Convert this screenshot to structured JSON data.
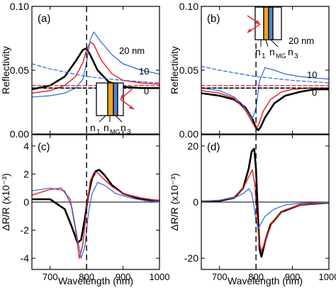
{
  "colors": {
    "black": "#000000",
    "red": "#e8262a",
    "blue": "#2e66d6",
    "orange": "#f3a21d",
    "blue_layer": "#4a87d6",
    "arrow": "#e8262a"
  },
  "chart_data": [
    {
      "panel": "(a)",
      "type": "line",
      "ylabel": "Reflectivity",
      "xlim": [
        650,
        1000
      ],
      "ylim": [
        0.0,
        0.1
      ],
      "yticks": [
        "0.00",
        "0.05",
        "0.10"
      ],
      "xticks": [],
      "vline_x": 800,
      "series_labels": [
        "20 nm",
        "10",
        "0"
      ],
      "inset_labels": [
        "n",
        "1",
        "n",
        "MG",
        "n",
        "3"
      ],
      "series": [
        {
          "color": "black",
          "dash": false,
          "width": 2.6,
          "x": [
            650,
            700,
            740,
            770,
            790,
            800,
            810,
            830,
            860,
            900,
            950,
            1000
          ],
          "y": [
            0.035,
            0.038,
            0.045,
            0.057,
            0.066,
            0.067,
            0.062,
            0.05,
            0.041,
            0.037,
            0.036,
            0.036
          ]
        },
        {
          "color": "red",
          "dash": false,
          "width": 1.5,
          "x": [
            650,
            700,
            740,
            770,
            790,
            800,
            810,
            820,
            840,
            870,
            900,
            950,
            1000
          ],
          "y": [
            0.032,
            0.034,
            0.038,
            0.045,
            0.056,
            0.066,
            0.072,
            0.07,
            0.058,
            0.047,
            0.042,
            0.04,
            0.039
          ]
        },
        {
          "color": "blue",
          "dash": false,
          "width": 1.2,
          "x": [
            650,
            700,
            740,
            770,
            790,
            800,
            810,
            820,
            840,
            870,
            900,
            950,
            1000
          ],
          "y": [
            0.029,
            0.03,
            0.032,
            0.036,
            0.043,
            0.056,
            0.074,
            0.08,
            0.072,
            0.062,
            0.055,
            0.05,
            0.047
          ]
        },
        {
          "color": "blue",
          "dash": true,
          "width": 1.2,
          "x": [
            650,
            700,
            800,
            900,
            1000
          ],
          "y": [
            0.055,
            0.051,
            0.045,
            0.042,
            0.04
          ]
        },
        {
          "color": "red",
          "dash": true,
          "width": 1.3,
          "x": [
            650,
            800,
            1000
          ],
          "y": [
            0.038,
            0.038,
            0.038
          ]
        },
        {
          "color": "black",
          "dash": true,
          "width": 1.6,
          "x": [
            650,
            800,
            1000
          ],
          "y": [
            0.036,
            0.036,
            0.036
          ]
        }
      ]
    },
    {
      "panel": "(b)",
      "type": "line",
      "ylabel": "Reflectivity",
      "xlim": [
        650,
        1000
      ],
      "ylim": [
        0.0,
        0.1
      ],
      "yticks": [
        "0.00",
        "0.05",
        "0.10"
      ],
      "xticks": [],
      "vline_x": 800,
      "series_labels": [
        "20 nm",
        "10",
        "0"
      ],
      "inset_labels": [
        "n",
        "1",
        "n",
        "MG",
        "n",
        "3"
      ],
      "series": [
        {
          "color": "black",
          "dash": false,
          "width": 2.6,
          "x": [
            650,
            700,
            740,
            770,
            790,
            800,
            806,
            812,
            825,
            850,
            880,
            920,
            960,
            1000
          ],
          "y": [
            0.032,
            0.03,
            0.027,
            0.021,
            0.012,
            0.005,
            0.003,
            0.005,
            0.013,
            0.024,
            0.03,
            0.033,
            0.035,
            0.035
          ]
        },
        {
          "color": "red",
          "dash": false,
          "width": 1.5,
          "x": [
            650,
            700,
            740,
            770,
            790,
            800,
            808,
            820,
            840,
            870,
            900,
            950,
            1000
          ],
          "y": [
            0.034,
            0.032,
            0.028,
            0.019,
            0.009,
            0.004,
            0.008,
            0.018,
            0.027,
            0.033,
            0.035,
            0.036,
            0.036
          ]
        },
        {
          "color": "blue",
          "dash": false,
          "width": 1.2,
          "x": [
            650,
            700,
            740,
            760,
            780,
            790,
            800,
            810,
            825,
            850,
            880,
            920,
            960,
            1000
          ],
          "y": [
            0.036,
            0.034,
            0.029,
            0.024,
            0.016,
            0.012,
            0.02,
            0.042,
            0.052,
            0.05,
            0.047,
            0.045,
            0.044,
            0.043
          ]
        },
        {
          "color": "blue",
          "dash": true,
          "width": 1.2,
          "x": [
            650,
            700,
            800,
            900,
            1000
          ],
          "y": [
            0.053,
            0.05,
            0.045,
            0.042,
            0.04
          ]
        },
        {
          "color": "red",
          "dash": true,
          "width": 1.3,
          "x": [
            650,
            800,
            1000
          ],
          "y": [
            0.038,
            0.038,
            0.038
          ]
        },
        {
          "color": "black",
          "dash": true,
          "width": 1.6,
          "x": [
            650,
            800,
            1000
          ],
          "y": [
            0.036,
            0.036,
            0.036
          ]
        }
      ]
    },
    {
      "panel": "(c)",
      "type": "line",
      "ylabel": "ΔR/R (x10⁻³)",
      "xlabel": "Wavelength (nm)",
      "xlim": [
        650,
        1000
      ],
      "ylim": [
        -4.8,
        4.8
      ],
      "yticks": [
        "-4",
        "-2",
        "0",
        "2",
        "4"
      ],
      "ytick_values": [
        -4,
        -2,
        0,
        2,
        4
      ],
      "xticks": [
        "700",
        "800",
        "900",
        "1000"
      ],
      "xtick_values": [
        700,
        800,
        900,
        1000
      ],
      "vline_x": 800,
      "zero_line": true,
      "series": [
        {
          "color": "black",
          "dash": false,
          "width": 2.6,
          "x": [
            650,
            700,
            740,
            760,
            775,
            785,
            795,
            805,
            815,
            825,
            835,
            850,
            870,
            900,
            950,
            1000
          ],
          "y": [
            0.2,
            0.2,
            -0.5,
            -1.8,
            -2.9,
            -2.7,
            -1.2,
            0.5,
            1.7,
            2.2,
            2.3,
            1.9,
            1.2,
            0.6,
            0.2,
            0.1
          ]
        },
        {
          "color": "red",
          "dash": false,
          "width": 1.5,
          "x": [
            650,
            700,
            730,
            755,
            770,
            780,
            790,
            800,
            810,
            820,
            830,
            845,
            870,
            900,
            950,
            1000
          ],
          "y": [
            0.5,
            0.9,
            1.0,
            0.2,
            -2.0,
            -4.0,
            -3.0,
            -0.5,
            1.5,
            2.1,
            2.1,
            1.7,
            1.1,
            0.6,
            0.3,
            0.1
          ]
        },
        {
          "color": "blue",
          "dash": false,
          "width": 1.2,
          "x": [
            650,
            700,
            740,
            760,
            775,
            785,
            795,
            805,
            815,
            830,
            850,
            880,
            920,
            960,
            1000
          ],
          "y": [
            0.8,
            1.0,
            0.8,
            -0.4,
            -2.6,
            -4.0,
            -3.2,
            -0.8,
            0.6,
            1.4,
            1.2,
            0.6,
            0.3,
            0.1,
            0.0
          ]
        }
      ]
    },
    {
      "panel": "(d)",
      "type": "line",
      "ylabel": "ΔR/R (x10⁻³)",
      "xlabel": "Wavelength (nm)",
      "xlim": [
        650,
        1000
      ],
      "ylim": [
        -24,
        24
      ],
      "yticks": [
        "-20",
        "0",
        "20"
      ],
      "ytick_values": [
        -20,
        0,
        20
      ],
      "xticks": [
        "700",
        "800",
        "900",
        "1000"
      ],
      "xtick_values": [
        700,
        800,
        900,
        1000
      ],
      "vline_x": 800,
      "zero_line": true,
      "series": [
        {
          "color": "black",
          "dash": false,
          "width": 2.6,
          "x": [
            650,
            700,
            740,
            765,
            780,
            788,
            795,
            800,
            805,
            810,
            815,
            825,
            840,
            870,
            920,
            1000
          ],
          "y": [
            0.2,
            0.4,
            1.5,
            5.0,
            12.0,
            18.0,
            19.0,
            12.0,
            -4.0,
            -17.0,
            -19.5,
            -14.0,
            -8.0,
            -3.5,
            -1.0,
            -0.2
          ]
        },
        {
          "color": "red",
          "dash": false,
          "width": 1.5,
          "x": [
            650,
            700,
            740,
            765,
            780,
            790,
            797,
            802,
            808,
            815,
            825,
            845,
            875,
            920,
            1000
          ],
          "y": [
            0.3,
            0.6,
            1.8,
            5.0,
            9.0,
            11.5,
            6.0,
            -4.0,
            -14.0,
            -17.5,
            -14.0,
            -7.0,
            -3.0,
            -1.0,
            -0.2
          ]
        },
        {
          "color": "blue",
          "dash": false,
          "width": 1.2,
          "x": [
            650,
            700,
            740,
            765,
            780,
            788,
            795,
            800,
            806,
            812,
            825,
            850,
            880,
            930,
            1000
          ],
          "y": [
            0.3,
            0.7,
            1.5,
            3.0,
            4.8,
            3.2,
            -2.0,
            -6.5,
            -9.5,
            -8.0,
            -5.0,
            -2.5,
            -1.0,
            -0.3,
            -0.1
          ]
        }
      ]
    }
  ]
}
